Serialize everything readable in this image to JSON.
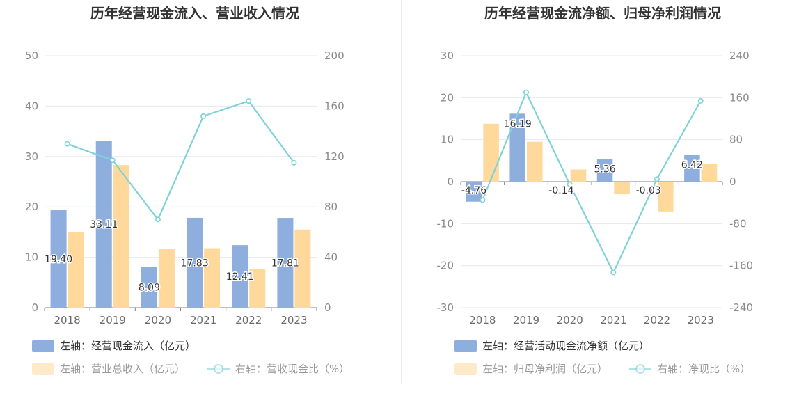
{
  "chart_data": [
    {
      "type": "bar",
      "title": "历年经营现金流入、营业收入情况",
      "categories": [
        "2018",
        "2019",
        "2020",
        "2021",
        "2022",
        "2023"
      ],
      "left_axis": {
        "ylim": [
          0,
          50
        ],
        "ticks": [
          "0",
          "10",
          "20",
          "30",
          "40",
          "50"
        ]
      },
      "right_axis": {
        "ylim": [
          0,
          200
        ],
        "ticks": [
          "0",
          "40",
          "80",
          "120",
          "160",
          "200"
        ]
      },
      "series": [
        {
          "name": "左轴：经营现金流入（亿元）",
          "kind": "bar",
          "axis": "left",
          "color": "#8eaedd",
          "values": [
            19.4,
            33.11,
            8.09,
            17.83,
            12.41,
            17.81
          ],
          "labels": [
            "19.40",
            "33.11",
            "8.09",
            "17.83",
            "12.41",
            "17.81"
          ]
        },
        {
          "name": "左轴：营业总收入（亿元）",
          "kind": "bar",
          "axis": "left",
          "color": "#fed99b",
          "values": [
            15.0,
            28.3,
            11.7,
            11.8,
            7.6,
            15.5
          ]
        },
        {
          "name": "右轴：营收现金比（%）",
          "kind": "line",
          "axis": "right",
          "color": "#7fd3d7",
          "values": [
            130,
            117,
            70,
            152,
            164,
            115
          ]
        }
      ]
    },
    {
      "type": "bar",
      "title": "历年经营现金流净额、归母净利润情况",
      "categories": [
        "2018",
        "2019",
        "2020",
        "2021",
        "2022",
        "2023"
      ],
      "left_axis": {
        "ylim": [
          -30,
          30
        ],
        "ticks": [
          "-30",
          "-20",
          "-10",
          "0",
          "10",
          "20",
          "30"
        ]
      },
      "right_axis": {
        "ylim": [
          -240,
          240
        ],
        "ticks": [
          "-240",
          "-160",
          "-80",
          "0",
          "80",
          "160",
          "240"
        ]
      },
      "series": [
        {
          "name": "左轴：经营活动现金流净额（亿元）",
          "kind": "bar",
          "axis": "left",
          "color": "#8eaedd",
          "values": [
            -4.76,
            16.19,
            -0.14,
            5.36,
            -0.03,
            6.42
          ],
          "labels": [
            "-4.76",
            "16.19",
            "-0.14",
            "5.36",
            "-0.03",
            "6.42"
          ]
        },
        {
          "name": "左轴：归母净利润（亿元）",
          "kind": "bar",
          "axis": "left",
          "color": "#fed99b",
          "values": [
            13.8,
            9.5,
            2.9,
            -3.0,
            -7.1,
            4.2
          ]
        },
        {
          "name": "右轴：净现比（%）",
          "kind": "line",
          "axis": "right",
          "color": "#7fd3d7",
          "values": [
            -35,
            170,
            -5,
            -173,
            5,
            154
          ]
        }
      ]
    }
  ],
  "colors": {
    "grid": "#e6e8f0",
    "axis": "#7f7f7f",
    "divider": "#ececec",
    "legend_text": "#333333",
    "legend_text_dim": "#9a9a9a"
  }
}
